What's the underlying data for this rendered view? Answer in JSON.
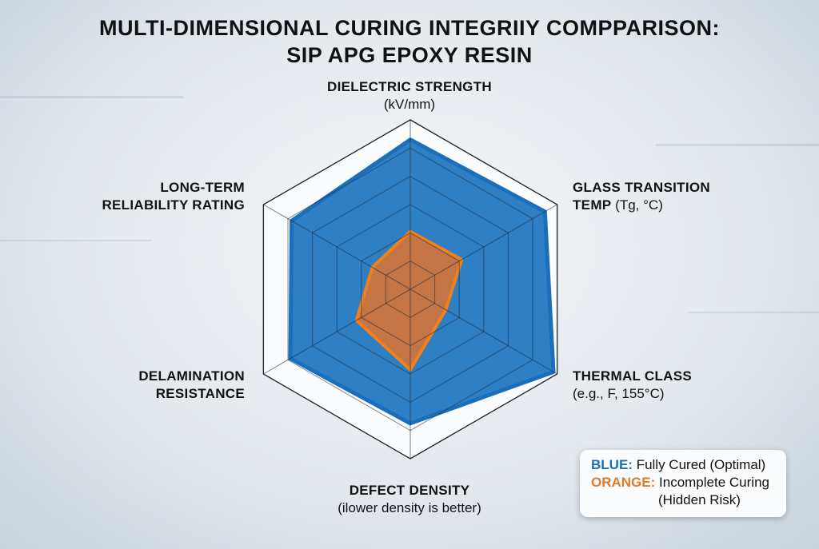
{
  "chart_data": {
    "type": "radar",
    "title": "MULTI-DIMENSIONAL CURING INTEGRIIY COMPPARISON:",
    "subtitle": "SIP APG EPOXY RESIN",
    "axes": [
      {
        "name": "DIELECTRIC STRENGTH",
        "unit": "(kV/mm)"
      },
      {
        "name": "GLASS TRANSITION",
        "name2": "TEMP",
        "unit": "(Tg, °C)"
      },
      {
        "name": "THERMAL CLASS",
        "unit": "(e.g., F, 155°C)"
      },
      {
        "name": "DEFECT DENSITY",
        "unit": "(ilower density is better)"
      },
      {
        "name": "DELAMINATION",
        "name2": "RESISTANCE",
        "unit": ""
      },
      {
        "name": "LONG-TERM",
        "name2": "RELIABILITY RATING",
        "unit": ""
      }
    ],
    "range": [
      0,
      6
    ],
    "rings": 6,
    "series": [
      {
        "name": "Fully Cured (Optimal)",
        "key": "BLUE:",
        "color": "#1a6fbd",
        "fill": "#2f7fc4",
        "values": [
          5.3,
          5.5,
          5.85,
          4.75,
          4.9,
          4.85
        ]
      },
      {
        "name": "Incomplete Curing",
        "name2": "(Hidden Risk)",
        "key": "ORANGE:",
        "color": "#f07f1c",
        "fill": "#d0743a",
        "values": [
          2.05,
          2.1,
          1.45,
          2.85,
          2.2,
          1.55
        ]
      }
    ],
    "legend_position": "bottom-right"
  }
}
